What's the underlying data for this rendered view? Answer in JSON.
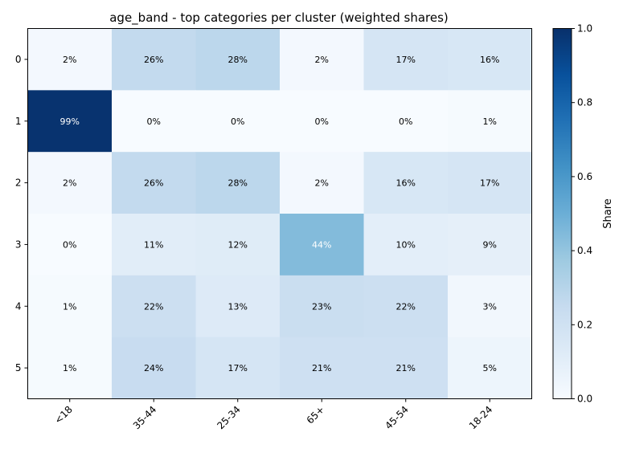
{
  "chart_data": {
    "type": "heatmap",
    "title": "age_band - top categories per cluster (weighted shares)",
    "xlabel": "",
    "ylabel": "",
    "x_categories": [
      "<18",
      "35-44",
      "25-34",
      "65+",
      "45-54",
      "18-24"
    ],
    "y_categories": [
      "0",
      "1",
      "2",
      "3",
      "4",
      "5"
    ],
    "values": [
      [
        0.02,
        0.26,
        0.28,
        0.02,
        0.17,
        0.16
      ],
      [
        0.99,
        0.0,
        0.0,
        0.0,
        0.0,
        0.01
      ],
      [
        0.02,
        0.26,
        0.28,
        0.02,
        0.16,
        0.17
      ],
      [
        0.0,
        0.11,
        0.12,
        0.44,
        0.1,
        0.09
      ],
      [
        0.01,
        0.22,
        0.13,
        0.23,
        0.22,
        0.03
      ],
      [
        0.01,
        0.24,
        0.17,
        0.21,
        0.21,
        0.05
      ]
    ],
    "cell_labels": [
      [
        "2%",
        "26%",
        "28%",
        "2%",
        "17%",
        "16%"
      ],
      [
        "99%",
        "0%",
        "0%",
        "0%",
        "0%",
        "1%"
      ],
      [
        "2%",
        "26%",
        "28%",
        "2%",
        "16%",
        "17%"
      ],
      [
        "0%",
        "11%",
        "12%",
        "44%",
        "10%",
        "9%"
      ],
      [
        "1%",
        "22%",
        "13%",
        "23%",
        "22%",
        "3%"
      ],
      [
        "1%",
        "24%",
        "17%",
        "21%",
        "21%",
        "5%"
      ]
    ],
    "colormap": "Blues",
    "colorbar": {
      "label": "Share",
      "range": [
        0,
        1
      ],
      "ticks": [
        0.0,
        0.2,
        0.4,
        0.6,
        0.8,
        1.0
      ],
      "tick_labels": [
        "0.0",
        "0.2",
        "0.4",
        "0.6",
        "0.8",
        "1.0"
      ]
    },
    "grid": false,
    "legend": "none"
  }
}
